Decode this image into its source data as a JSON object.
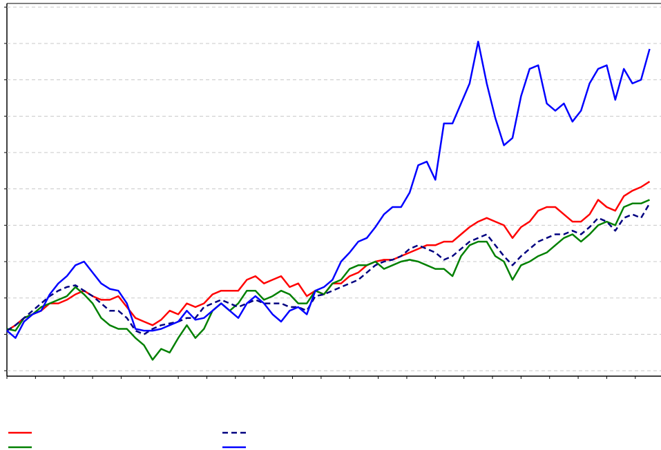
{
  "chart_data": {
    "type": "line",
    "x": [
      0,
      3,
      6,
      9,
      12,
      15,
      18,
      21,
      24,
      27,
      30,
      33,
      36,
      39,
      42,
      45,
      48,
      51,
      54,
      57,
      60,
      63,
      66,
      69,
      72,
      75,
      78,
      81,
      84,
      87,
      90,
      93,
      96,
      99,
      102,
      105,
      108,
      111,
      114,
      117,
      120,
      123,
      126,
      129,
      132,
      135,
      138,
      141,
      144,
      147,
      150,
      153,
      156,
      159,
      162,
      165,
      168,
      171,
      174,
      177,
      180,
      183,
      186,
      189,
      192,
      195,
      198,
      201,
      204,
      207,
      210,
      213,
      216,
      219,
      222,
      225
    ],
    "series": [
      {
        "color": "#ff0000",
        "dash": false,
        "values": [
          102,
          105,
          109,
          111,
          113,
          117,
          117,
          119,
          122,
          124,
          121,
          119,
          119,
          121,
          115,
          109,
          107,
          105,
          108,
          113,
          111,
          117,
          115,
          117,
          122,
          124,
          124,
          124,
          130,
          132,
          128,
          130,
          132,
          126,
          128,
          121,
          124,
          122,
          128,
          128,
          132,
          134,
          138,
          140,
          141,
          141,
          143,
          145,
          147,
          149,
          149,
          151,
          151,
          155,
          159,
          162,
          164,
          162,
          160,
          153,
          159,
          162,
          168,
          170,
          170,
          166,
          162,
          162,
          166,
          174,
          170,
          168,
          176,
          179,
          181,
          184
        ]
      },
      {
        "color": "#008000",
        "dash": false,
        "values": [
          103,
          102,
          109,
          111,
          115,
          117,
          119,
          121,
          126,
          122,
          117,
          109,
          105,
          103,
          103,
          98,
          94,
          86,
          92,
          90,
          98,
          105,
          98,
          103,
          113,
          117,
          113,
          117,
          124,
          124,
          119,
          121,
          124,
          122,
          117,
          117,
          124,
          122,
          128,
          130,
          136,
          138,
          138,
          140,
          136,
          138,
          140,
          141,
          140,
          138,
          136,
          136,
          132,
          143,
          149,
          151,
          151,
          143,
          140,
          130,
          138,
          140,
          143,
          145,
          149,
          153,
          155,
          151,
          155,
          160,
          162,
          160,
          170,
          172,
          172,
          174
        ]
      },
      {
        "color": "#000080",
        "dash": true,
        "values": [
          102,
          105,
          109,
          113,
          117,
          121,
          124,
          126,
          127,
          124,
          121,
          117,
          113,
          113,
          109,
          102,
          100,
          103,
          105,
          106,
          107,
          109,
          109,
          115,
          117,
          119,
          117,
          115,
          117,
          119,
          117,
          117,
          117,
          115,
          115,
          113,
          121,
          122,
          124,
          126,
          128,
          130,
          134,
          138,
          140,
          141,
          143,
          147,
          149,
          147,
          145,
          141,
          143,
          147,
          151,
          153,
          155,
          149,
          143,
          138,
          143,
          147,
          151,
          153,
          155,
          155,
          157,
          155,
          159,
          164,
          162,
          157,
          164,
          166,
          164,
          172
        ]
      },
      {
        "color": "#0000ff",
        "dash": false,
        "values": [
          102,
          98,
          107,
          111,
          113,
          122,
          128,
          132,
          138,
          140,
          134,
          128,
          125,
          124,
          117,
          103,
          102,
          102,
          103,
          105,
          107,
          113,
          108,
          109,
          113,
          117,
          113,
          109,
          117,
          121,
          117,
          111,
          107,
          113,
          115,
          111,
          124,
          126,
          130,
          140,
          145,
          151,
          153,
          159,
          166,
          170,
          170,
          178,
          193,
          195,
          185,
          216,
          216,
          227,
          238,
          261,
          238,
          219,
          204,
          208,
          231,
          246,
          248,
          227,
          223,
          227,
          217,
          223,
          238,
          246,
          248,
          229,
          246,
          238,
          240,
          257
        ]
      }
    ],
    "xlim": [
      0,
      229
    ],
    "xticks": [
      0,
      10,
      20,
      30,
      40,
      50,
      60,
      70,
      80,
      90,
      100,
      110,
      120,
      130,
      140,
      150,
      160,
      170,
      180,
      190,
      200,
      210,
      220
    ],
    "ylim": [
      77,
      282
    ],
    "yticks": [
      80,
      100,
      120,
      140,
      160,
      180,
      200,
      220,
      240,
      260,
      280
    ],
    "grid": true
  }
}
